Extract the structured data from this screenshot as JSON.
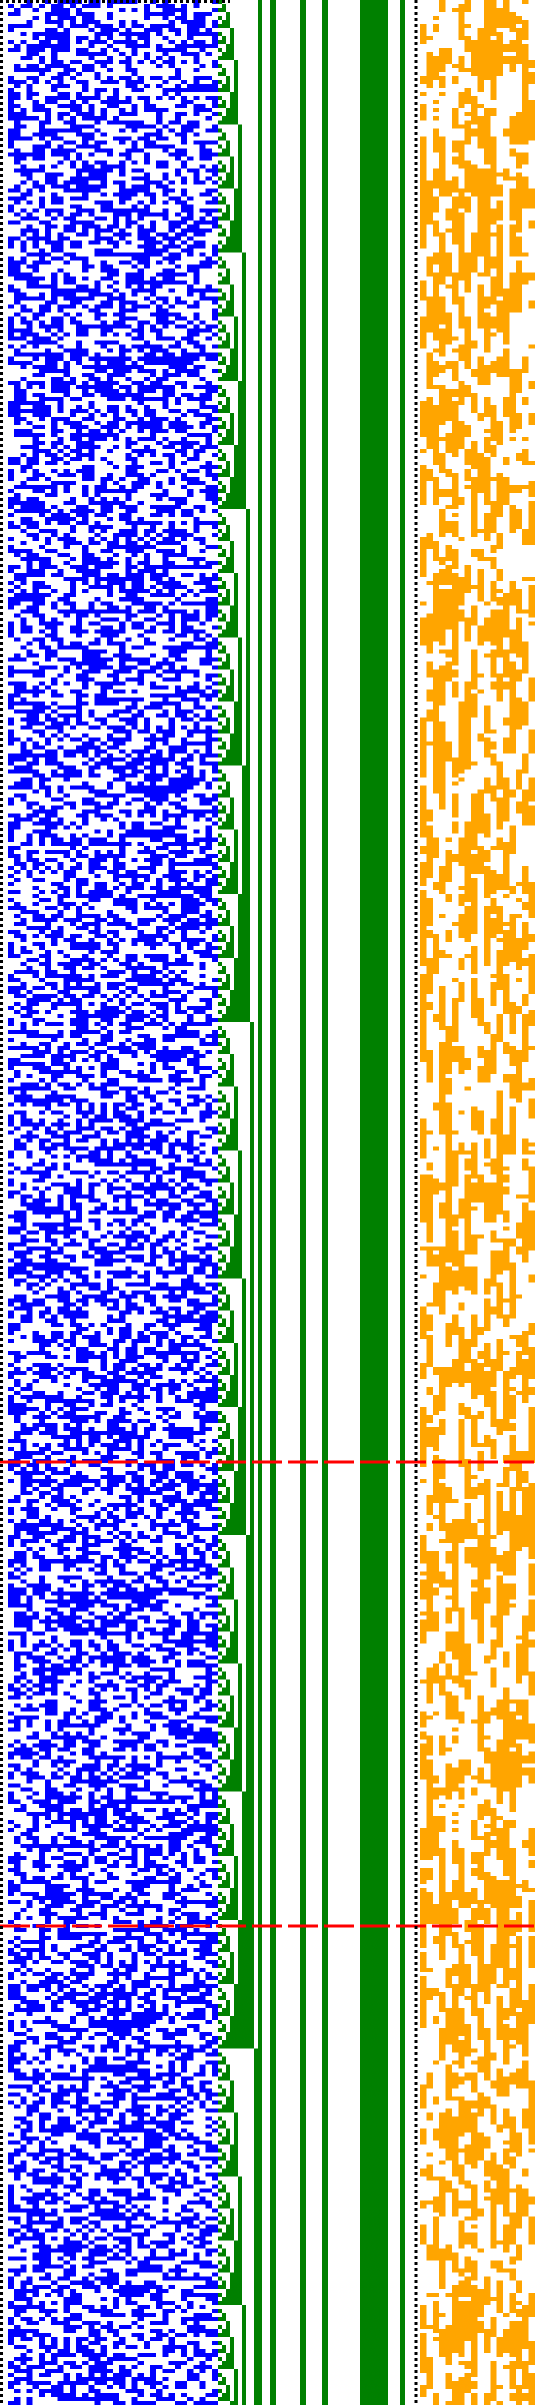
{
  "colors": {
    "background": "#ffffff",
    "state_cells": "#0000ff",
    "counter_cells": "#008000",
    "bus_lines": "#008000",
    "output_cells": "#ffa500",
    "marker_lines": "#ff0000",
    "dotted_borders": "#000000"
  },
  "grid": {
    "rows": 600,
    "state_columns": 34,
    "counter_columns": 10,
    "output_columns": 18,
    "state_fill_probability": 0.5,
    "output_fill_probability": 0.5
  },
  "bus_lines": {
    "count": 6,
    "wide_line_index": 4
  },
  "markers": {
    "count": 2,
    "row_fractions": [
      0.608,
      0.801
    ]
  },
  "borders": {
    "top": "dotted",
    "left": "dotted",
    "middle": "dotted"
  }
}
